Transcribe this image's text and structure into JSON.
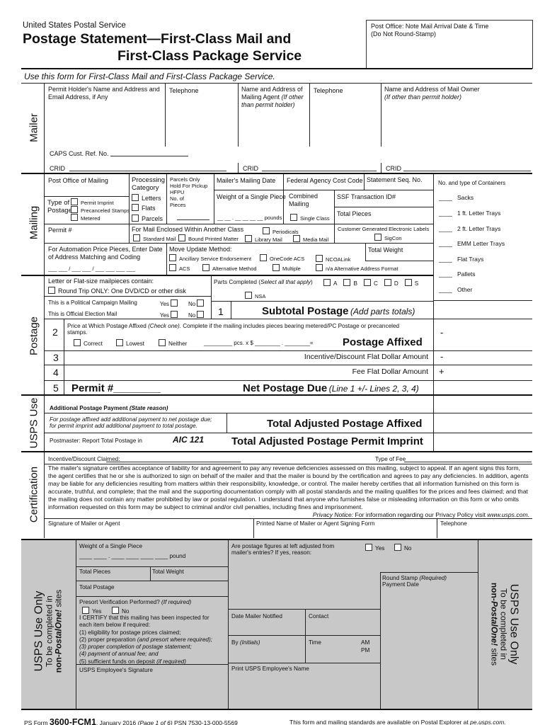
{
  "header": {
    "agency": "United States Postal Service",
    "title_line1": "Postage Statement—First-Class Mail and",
    "title_line2": "First-Class Package Service",
    "po_note_1": "Post Office: Note Mail Arrival Date & Time",
    "po_note_2": "(Do Not Round-Stamp)",
    "instruction": "Use this form for First-Class Mail and First-Class Package Service."
  },
  "mailer": {
    "section_label": "Mailer",
    "permit_holder_1": "Permit Holder's Name and Address and",
    "permit_holder_2": "Email Address, if Any",
    "telephone": "Telephone",
    "agent_1": "Name and Address of",
    "agent_2": "Mailing Agent",
    "agent_2i": "(If other",
    "agent_3": "than permit holder)",
    "telephone2": "Telephone",
    "owner_1": "Name and Address of Mail Owner",
    "owner_2": "(If other than permit holder)",
    "caps": "CAPS Cust. Ref. No.",
    "crid": "CRID"
  },
  "mailing": {
    "section_label": "Mailing",
    "post_office": "Post Office of Mailing",
    "processing_1": "Processing",
    "processing_2": "Category",
    "letters": "Letters",
    "flats": "Flats",
    "parcels": "Parcels",
    "type_of": "Type of",
    "postage": "Postage",
    "permit_imprint": "Permit Imprint",
    "precanceled": "Precanceled Stamps",
    "metered": "Metered",
    "parcels_only": [
      "Parcels Only",
      "Hold For Pickup",
      "HFPU",
      "No. of",
      "Pieces"
    ],
    "mailing_date": "Mailer's Mailing Date",
    "fed_agency": "Federal Agency Cost Code",
    "stmt_seq": "Statement Seq. No.",
    "weight": "Weight of a Single Piece",
    "weight_blank": "__ __ . __ __ __ __",
    "pounds": "pounds",
    "combined_1": "Combined",
    "combined_2": "Mailing",
    "single_class": "Single Class",
    "ssf": "SSF Transaction ID#",
    "total_pieces": "Total Pieces",
    "permit_no": "Permit #",
    "enclosed": "For Mail Enclosed Within Another Class",
    "periodicals": "Periodicals",
    "standard": "Standard Mail",
    "bpm": "Bound Printed Matter",
    "library": "Library Mail",
    "media": "Media Mail",
    "cgel": "Customer Generated Electronic Labels",
    "sigcon": "SigCon",
    "automation_1": "For Automation Price Pieces, Enter Date",
    "automation_2": "of Address Matching and Coding",
    "date_blank": "___ ___ / ___ ___ / ___ ___ ___ ___",
    "move_update": "Move Update Method:",
    "ancillary": "Ancillary Service Endorsement",
    "onecode": "OneCode ACS",
    "ncoalink": "NCOALink",
    "acs": "ACS",
    "alternative": "Alternative Method",
    "multiple": "Multiple",
    "na_alt": "n/a Alternative Address Format",
    "total_weight": "Total Weight"
  },
  "containers": {
    "header": "No. and type of Containers",
    "blank": "____",
    "items": [
      "Sacks",
      "1 ft. Letter Trays",
      "2 ft. Letter Trays",
      "EMM Letter Trays",
      "Flat Trays",
      "Pallets",
      "Other"
    ]
  },
  "postage": {
    "section_label": "Postage",
    "letter_flat": "Letter or Flat-size mailpieces contain:",
    "round_trip": "Round Trip ONLY: One DVD/CD or other disk",
    "political": "This is a Political Campaign Mailing",
    "election": "This is Official Election Mail",
    "yes": "Yes",
    "no": "No",
    "parts": "Parts Completed (",
    "parts_i": "Select all that apply",
    "parts_end": ")",
    "parts_options": [
      "A",
      "B",
      "C",
      "D",
      "S"
    ],
    "nsa": "NSA",
    "line1_no": "1",
    "subtotal": "Subtotal Postage",
    "subtotal_note": "(Add parts totals)",
    "line2_no": "2",
    "line2_text_a": "Price at Which Postage Affixed ",
    "line2_text_i": "(Check one).",
    "line2_text_b": " Complete if the mailing includes pieces bearing metered/PC Postage or precanceled",
    "line2_text_c": "stamps.",
    "correct": "Correct",
    "lowest": "Lowest",
    "neither": "Neither",
    "pcs": "_________  pcs. x $ ________ . ________=",
    "postage_affixed": "Postage Affixed",
    "line3_no": "3",
    "line3": "Incentive/Discount Flat Dollar Amount",
    "line4_no": "4",
    "line4": "Fee Flat Dollar Amount",
    "line5_no": "5",
    "permit": "Permit #________",
    "net": "Net Postage Due",
    "net_note": "(Line 1 +/- Lines 2, 3, 4)",
    "sign2": "-",
    "sign3": "-",
    "sign4": "+"
  },
  "usps_use": {
    "section_label": "USPS Use",
    "additional": "Additional Postage Payment",
    "additional_note": "(State reason)",
    "affixed_note_1": "For postage affixed add additional payment to net postage due;",
    "affixed_note_2": "for permit imprint add additional payment to total postage.",
    "total_adj_affixed": "Total Adjusted Postage Affixed",
    "postmaster": "Postmaster: Report Total Postage in",
    "aic": "AIC 121",
    "total_adj_permit": "Total Adjusted Postage Permit Imprint"
  },
  "certification": {
    "section_label": "Certification",
    "incentive": "Incentive/Discount Claimed:",
    "type_fee": "Type of Fee",
    "paragraph": "The mailer's signature certifies acceptance of liability for and agreement to pay any revenue deficiencies assessed on this mailing, subject to appeal. If an agent signs this form, the agent certifies that he or she is authorized to sign on behalf of the mailer and that the mailer is bound by the certification and agrees to pay any deficiencies. In addition, agents may be liable for any deficiencies resulting from matters within their responsibility, knowledge, or control.  The mailer hereby certifies that all information furnished on this form is accurate, truthful, and complete; that the mail and the supporting documentation comply with all postal standards and the mailing qualifies for the prices and fees claimed; and that the mailing does not contain any matter prohibited by law or postal regulation.  I understand that anyone who furnishes false or misleading information on this form or who omits information requested on this form may be subject to criminal and/or civil penalties, including fines and imprisonment.",
    "privacy_label": "Privacy Notice:",
    "privacy_text": " For information regarding our Privacy Policy visit ",
    "privacy_url": "www.usps.com.",
    "signature": "Signature of Mailer or Agent",
    "printed_name": "Printed Name of Mailer or Agent Signing Form",
    "telephone": "Telephone"
  },
  "usps_only": {
    "label_1": "USPS Use Only",
    "label_2": "To be completed in",
    "label_3a": "non-",
    "label_3b": "PostalOne!",
    "label_3c": " sites",
    "weight": "Weight of a Single Piece",
    "weight_blank": "____ ____ . ____ ____ ____ ____",
    "pound": "pound",
    "total_pieces": "Total Pieces",
    "total_weight": "Total Weight",
    "total_postage": "Total Postage",
    "presort": "Presort Verification Performed? ",
    "presort_i": "(If required)",
    "yes": "Yes",
    "no": "No",
    "certify": [
      "I CERTIFY that this mailing has been inspected for",
      "each item below if required:",
      "(1) eligibility for postage prices claimed;"
    ],
    "item2": "(2) proper preparation ",
    "item2_i": "(and presort where required);",
    "item3": "(3) proper completion of postage statement;",
    "item4": "(4) payment of annual fee; and",
    "item5": "(5) sufficient funds on deposit ",
    "item5_i": "(if required)",
    "signature": "USPS Employee's Signature",
    "adjusted_1": "Are postage figures at left adjusted from",
    "adjusted_2": "mailer's entries? If yes, reason:",
    "date_notified": "Date Mailer Notified",
    "contact": "Contact",
    "by": "By ",
    "by_i": "(Initials)",
    "time": "Time",
    "am": "AM",
    "pm": "PM",
    "print_name": "Print USPS Employee's Name",
    "round_stamp": "Round Stamp ",
    "round_stamp_i": "(Required)",
    "payment_date": "Payment Date"
  },
  "footer": {
    "ps_form": "PS Form ",
    "form_no": "3600-FCM1",
    "date": ", January 2016 ",
    "page": "(Page 1 of 6)",
    "psn": "  PSN 7530-13-000-5569",
    "availability": "This form and mailing standards are available on Postal Explorer at ",
    "url": "pe.usps.com."
  }
}
